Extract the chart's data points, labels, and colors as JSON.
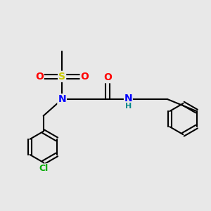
{
  "background_color": "#e8e8e8",
  "bond_color": "#000000",
  "atom_colors": {
    "N": "#0000ff",
    "O": "#ff0000",
    "S": "#cccc00",
    "Cl": "#00aa00",
    "C": "#000000",
    "H": "#008888"
  }
}
